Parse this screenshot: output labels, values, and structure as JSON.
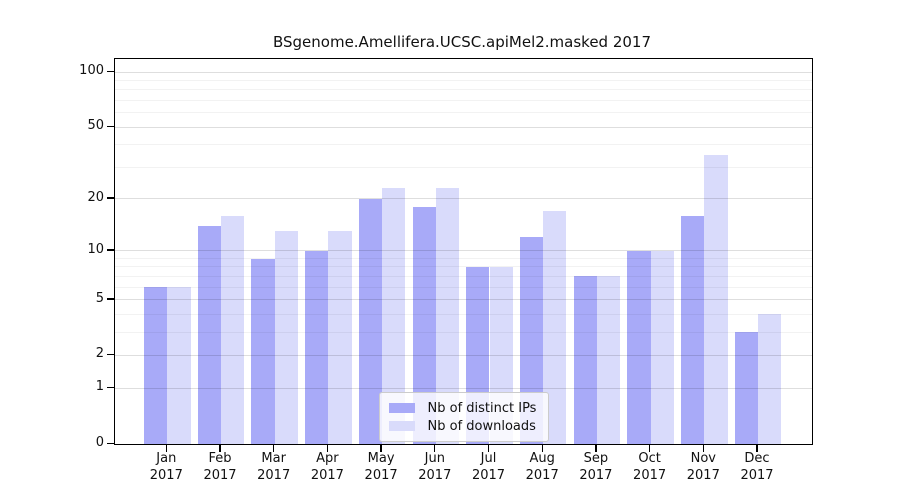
{
  "title": "BSgenome.Amellifera.UCSC.apiMel2.masked 2017",
  "chart_data": {
    "type": "bar",
    "title": "BSgenome.Amellifera.UCSC.apiMel2.masked 2017",
    "categories": [
      "Jan",
      "Feb",
      "Mar",
      "Apr",
      "May",
      "Jun",
      "Jul",
      "Aug",
      "Sep",
      "Oct",
      "Nov",
      "Dec"
    ],
    "category_year": "2017",
    "series": [
      {
        "name": "Nb of distinct IPs",
        "color": "#a8aaf8",
        "values": [
          6,
          14,
          9,
          10,
          20,
          18,
          8,
          12,
          7,
          10,
          16,
          3
        ]
      },
      {
        "name": "Nb of downloads",
        "color": "#d9dbfb",
        "values": [
          6,
          16,
          13,
          13,
          23,
          23,
          8,
          17,
          7,
          10,
          35,
          4
        ]
      }
    ],
    "y_scale": "log1p",
    "y_ticks": [
      0,
      1,
      2,
      5,
      10,
      20,
      50,
      100
    ],
    "y_minor_gridlines": [
      3,
      4,
      6,
      7,
      8,
      9,
      30,
      40,
      60,
      70,
      80,
      90
    ],
    "ylim": [
      0,
      118
    ],
    "grid": "horizontal",
    "legend_position": "lower-center",
    "axis_color": "#000000",
    "background_color": "#ffffff"
  }
}
